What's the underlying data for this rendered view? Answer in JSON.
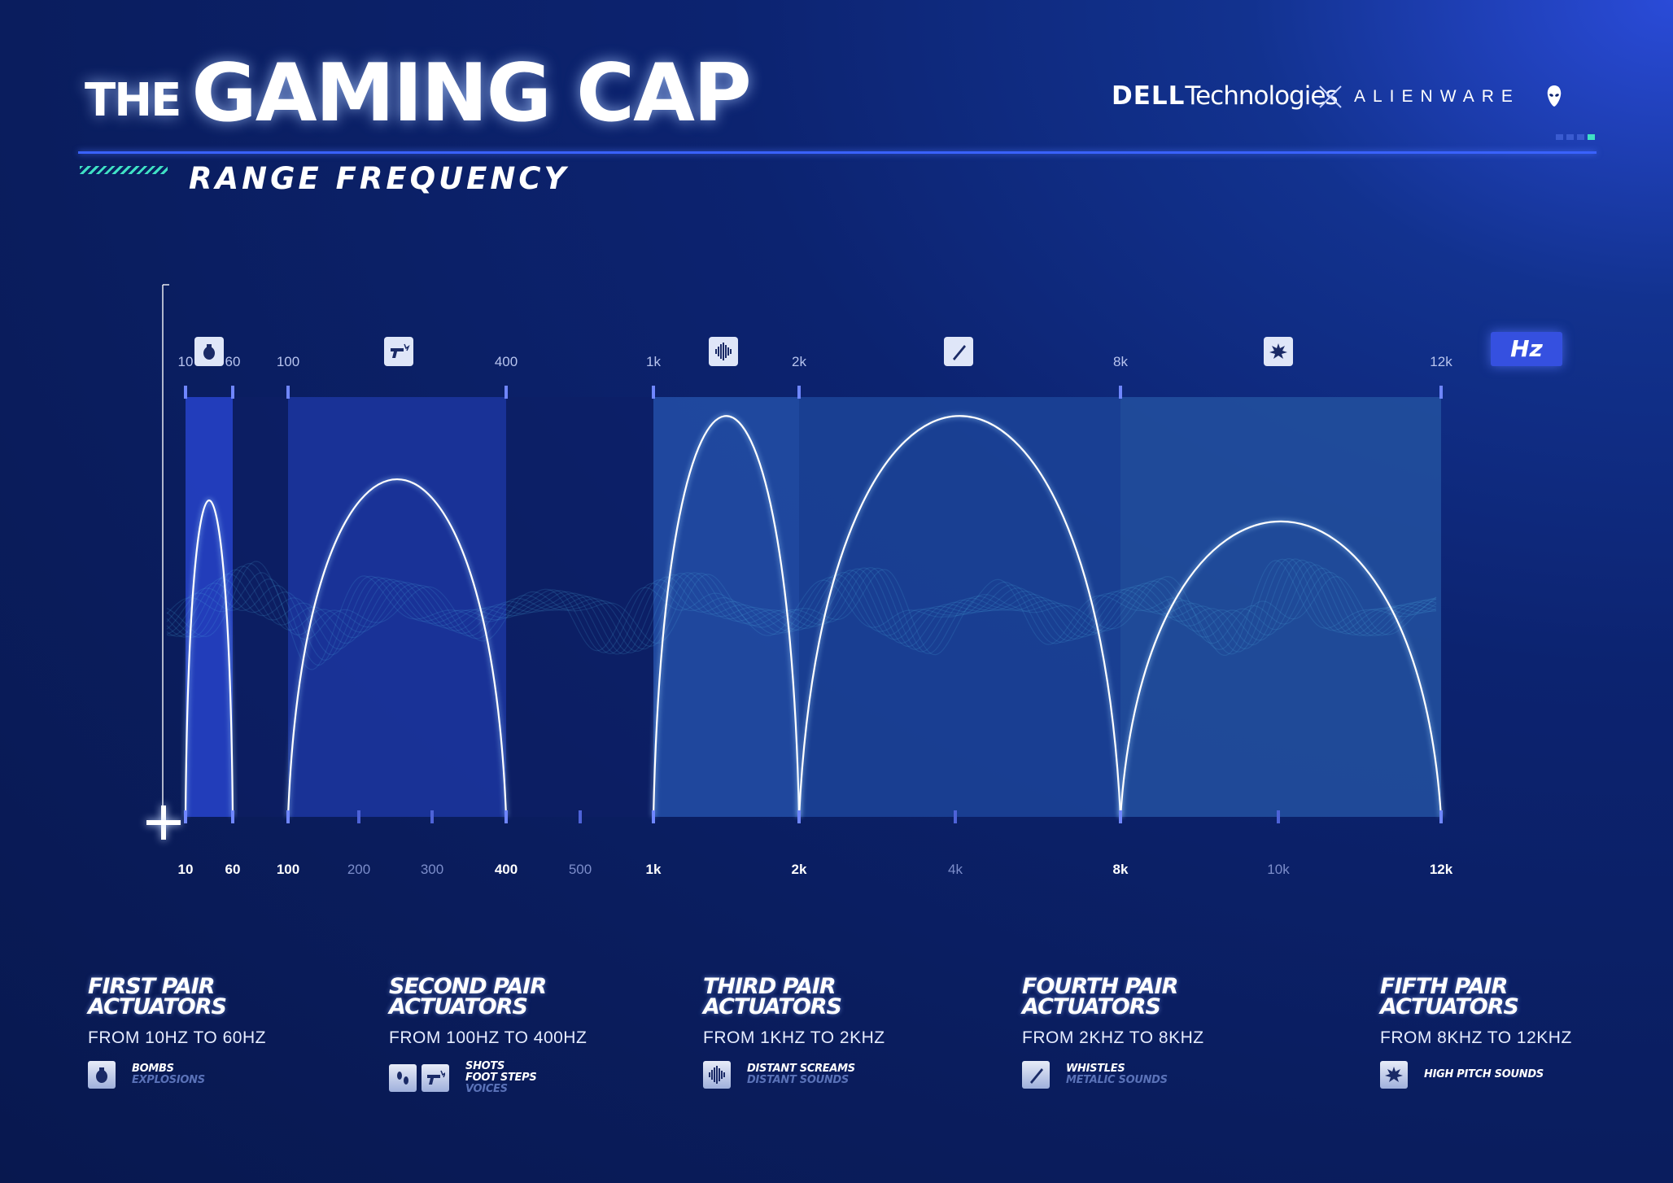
{
  "header": {
    "title_small": "THE",
    "title_big": "GAMING CAP",
    "subtitle": "RANGE FREQUENCY",
    "brand_dell_bold": "DELL",
    "brand_dell_rest": "Technologies",
    "brand_alienware": "ALIENWARE",
    "accent_color": "#3a62ff",
    "hatch_color": "#3fe0c4"
  },
  "chart_data": {
    "type": "area",
    "title": "RANGE FREQUENCY",
    "unit_label": "Hz",
    "x_scale": "categorical, non-linear (labelled frequency ticks)",
    "x_ticks": [
      {
        "label": "10",
        "value": 10,
        "bold": true
      },
      {
        "label": "60",
        "value": 60,
        "bold": true
      },
      {
        "label": "100",
        "value": 100,
        "bold": true
      },
      {
        "label": "200",
        "value": 200,
        "bold": false
      },
      {
        "label": "300",
        "value": 300,
        "bold": false
      },
      {
        "label": "400",
        "value": 400,
        "bold": true
      },
      {
        "label": "500",
        "value": 500,
        "bold": false
      },
      {
        "label": "1k",
        "value": 1000,
        "bold": true
      },
      {
        "label": "2k",
        "value": 2000,
        "bold": true
      },
      {
        "label": "4k",
        "value": 4000,
        "bold": false
      },
      {
        "label": "8k",
        "value": 8000,
        "bold": true
      },
      {
        "label": "10k",
        "value": 10000,
        "bold": false
      },
      {
        "label": "12k",
        "value": 12000,
        "bold": true
      }
    ],
    "top_labels": [
      "10",
      "60",
      "100",
      "400",
      "1k",
      "2k",
      "8k",
      "12k"
    ],
    "bands": [
      {
        "from": 10,
        "to": 60,
        "peak": 0.75,
        "icon": "grenade-icon",
        "color": "#2a48d8"
      },
      {
        "from": 100,
        "to": 400,
        "peak": 0.8,
        "icon": "gun-icon",
        "color": "#1e3aa8"
      },
      {
        "from": 1000,
        "to": 2000,
        "peak": 0.95,
        "icon": "sound-wave-icon",
        "color": "#2656b0"
      },
      {
        "from": 2000,
        "to": 8000,
        "peak": 0.95,
        "icon": "whistle-icon",
        "color": "#1e49a0"
      },
      {
        "from": 8000,
        "to": 12000,
        "peak": 0.7,
        "icon": "explosion-icon",
        "color": "#2558a8"
      }
    ],
    "series_color": "#ffffff",
    "waveform_color": "#4fb6e8"
  },
  "legend": [
    {
      "title_line1": "FIRST PAIR",
      "title_line2": "ACTUATORS",
      "range": "FROM 10HZ TO 60HZ",
      "icons": [
        "grenade-icon"
      ],
      "primary": [
        "BOMBS"
      ],
      "secondary": [
        "EXPLOSIONS"
      ]
    },
    {
      "title_line1": "SECOND PAIR",
      "title_line2": "ACTUATORS",
      "range": "FROM 100HZ TO 400HZ",
      "icons": [
        "footsteps-icon",
        "gun-icon"
      ],
      "primary": [
        "SHOTS",
        "FOOT STEPS"
      ],
      "secondary": [
        "VOICES"
      ]
    },
    {
      "title_line1": "THIRD PAIR",
      "title_line2": "ACTUATORS",
      "range": "FROM 1KHZ TO 2KHZ",
      "icons": [
        "sound-wave-icon"
      ],
      "primary": [
        "DISTANT SCREAMS"
      ],
      "secondary": [
        "DISTANT SOUNDS"
      ]
    },
    {
      "title_line1": "FOURTH PAIR",
      "title_line2": "ACTUATORS",
      "range": "FROM 2KHZ TO 8KHZ",
      "icons": [
        "whistle-icon"
      ],
      "primary": [
        "WHISTLES"
      ],
      "secondary": [
        "METALIC SOUNDS"
      ]
    },
    {
      "title_line1": "FIFTH PAIR",
      "title_line2": "ACTUATORS",
      "range": "FROM 8KHZ TO 12KHZ",
      "icons": [
        "explosion-icon"
      ],
      "primary": [
        "HIGH PITCH SOUNDS"
      ],
      "secondary": []
    }
  ]
}
